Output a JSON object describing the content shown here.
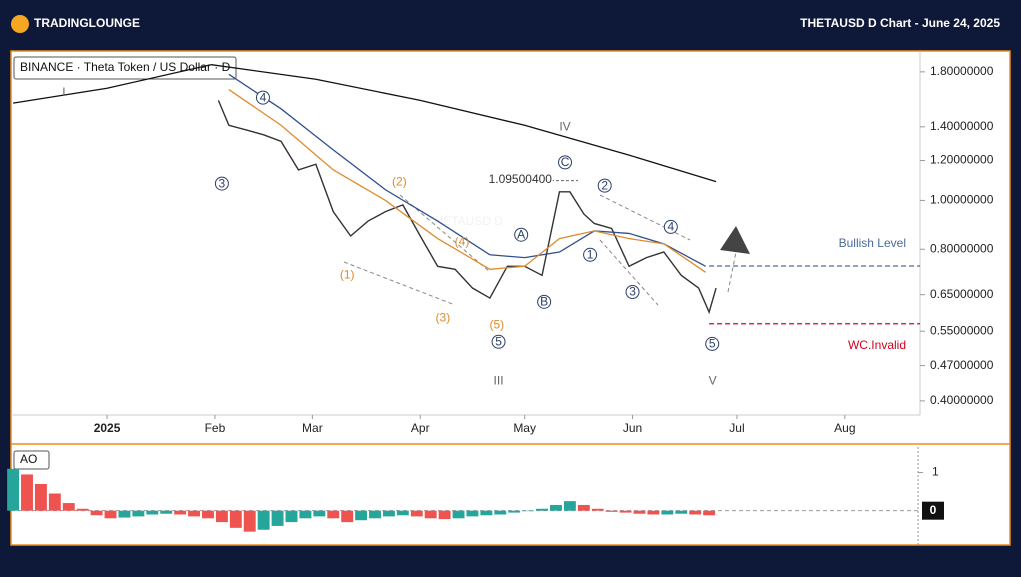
{
  "header": {
    "logo": "TradingLounge",
    "title": "THETAUSD D Chart - June 24, 2025"
  },
  "chart_data": [
    {
      "type": "line",
      "title": "BINANCE · Theta Token / US Dollar · D",
      "watermark": "THETAUSD D",
      "log_scale": true,
      "xlim": [
        -27.6,
        233.6
      ],
      "ylim": [
        0.375,
        1.98
      ],
      "xticks": [
        {
          "value": 0,
          "label": "2025"
        },
        {
          "value": 31,
          "label": "Feb"
        },
        {
          "value": 59,
          "label": "Mar"
        },
        {
          "value": 90,
          "label": "Apr"
        },
        {
          "value": 120,
          "label": "May"
        },
        {
          "value": 151,
          "label": "Jun"
        },
        {
          "value": 181,
          "label": "Jul"
        },
        {
          "value": 212,
          "label": "Aug"
        }
      ],
      "yticks": [
        {
          "value": 1.8,
          "label": "1.80000000"
        },
        {
          "value": 1.4,
          "label": "1.40000000"
        },
        {
          "value": 1.2,
          "label": "1.20000000"
        },
        {
          "value": 1.0,
          "label": "1.00000000"
        },
        {
          "value": 0.8,
          "label": "0.80000000"
        },
        {
          "value": 0.65,
          "label": "0.65000000"
        },
        {
          "value": 0.55,
          "label": "0.55000000"
        },
        {
          "value": 0.47,
          "label": "0.47000000"
        },
        {
          "value": 0.4,
          "label": "0.40000000"
        }
      ],
      "series": [
        {
          "color": "#333333",
          "x": [
            32,
            35,
            40,
            45,
            50,
            55,
            60,
            65,
            70,
            75,
            80,
            85,
            90,
            95,
            100,
            105,
            110,
            115,
            120,
            125,
            130,
            133,
            137,
            140,
            145,
            150,
            155,
            160,
            165,
            170,
            173,
            175
          ],
          "values": [
            1.58,
            1.41,
            1.38,
            1.35,
            1.31,
            1.15,
            1.18,
            0.95,
            0.85,
            0.91,
            0.95,
            0.98,
            0.85,
            0.74,
            0.73,
            0.67,
            0.64,
            0.74,
            0.74,
            0.71,
            1.04,
            1.04,
            0.94,
            0.9,
            0.88,
            0.74,
            0.77,
            0.79,
            0.71,
            0.67,
            0.6,
            0.67
          ]
        },
        {
          "color": "#111111",
          "x": [
            -27,
            0,
            30,
            60,
            90,
            120,
            150,
            175
          ],
          "values": [
            1.56,
            1.67,
            1.86,
            1.74,
            1.58,
            1.41,
            1.23,
            1.09
          ]
        },
        {
          "color": "#2f4f8f",
          "x": [
            35,
            50,
            65,
            80,
            95,
            110,
            120,
            130,
            140,
            150,
            160,
            172
          ],
          "values": [
            1.78,
            1.52,
            1.26,
            1.05,
            0.91,
            0.78,
            0.77,
            0.79,
            0.87,
            0.86,
            0.82,
            0.74
          ]
        },
        {
          "color": "#e08a2c",
          "x": [
            35,
            50,
            65,
            80,
            95,
            110,
            120,
            130,
            140,
            150,
            160,
            172
          ],
          "values": [
            1.66,
            1.41,
            1.15,
            1.0,
            0.84,
            0.73,
            0.74,
            0.84,
            0.87,
            0.84,
            0.82,
            0.72
          ]
        }
      ],
      "levels": [
        {
          "label": "Bullish Level",
          "value": 0.741,
          "start": 173,
          "color": "#4a6a9a"
        },
        {
          "label": "WC.Invalid",
          "value": 0.569,
          "start": 173,
          "color": "#d0021b"
        }
      ],
      "price_note": {
        "label": "1.09500400",
        "value": 1.095,
        "x": 129
      },
      "annotations": [
        {
          "label": "I",
          "x": -12.4,
          "y": 1.64,
          "style": "roman"
        },
        {
          "label": "4",
          "x": 44.8,
          "y": 1.6,
          "style": "circle"
        },
        {
          "label": "3",
          "x": 33,
          "y": 1.08,
          "style": "circle"
        },
        {
          "label": "(2)",
          "x": 84,
          "y": 1.09,
          "style": "orange"
        },
        {
          "label": "(1)",
          "x": 69,
          "y": 0.711,
          "style": "orange"
        },
        {
          "label": "(4)",
          "x": 102,
          "y": 0.828,
          "style": "orange"
        },
        {
          "label": "(3)",
          "x": 96.5,
          "y": 0.585,
          "style": "orange"
        },
        {
          "label": "(5)",
          "x": 112,
          "y": 0.566,
          "style": "orange"
        },
        {
          "label": "5",
          "x": 112.5,
          "y": 0.524,
          "style": "circle"
        },
        {
          "label": "III",
          "x": 112.5,
          "y": 0.438,
          "style": "roman"
        },
        {
          "label": "A",
          "x": 119,
          "y": 0.855,
          "style": "circle"
        },
        {
          "label": "B",
          "x": 125.6,
          "y": 0.629,
          "style": "circle"
        },
        {
          "label": "C",
          "x": 131.6,
          "y": 1.19,
          "style": "circle"
        },
        {
          "label": "IV",
          "x": 131.6,
          "y": 1.4,
          "style": "roman"
        },
        {
          "label": "2",
          "x": 143,
          "y": 1.07,
          "style": "circle"
        },
        {
          "label": "1",
          "x": 138.8,
          "y": 0.78,
          "style": "circle"
        },
        {
          "label": "4",
          "x": 162,
          "y": 0.886,
          "style": "circle"
        },
        {
          "label": "3",
          "x": 151,
          "y": 0.658,
          "style": "circle"
        },
        {
          "label": "5",
          "x": 173.9,
          "y": 0.519,
          "style": "circle"
        },
        {
          "label": "V",
          "x": 174,
          "y": 0.438,
          "style": "roman"
        }
      ]
    },
    {
      "type": "bar",
      "title": "AO",
      "up_color": "#26a69a",
      "down_color": "#ef5350",
      "xlim": [
        -27.6,
        233.6
      ],
      "ylim": [
        -0.9,
        1.67
      ],
      "yticks": [
        1,
        0
      ],
      "x": [
        -27,
        -23,
        -19,
        -15,
        -11,
        -7,
        -3,
        1,
        5,
        9,
        13,
        17,
        21,
        25,
        29,
        33,
        37,
        41,
        45,
        49,
        53,
        57,
        61,
        65,
        69,
        73,
        77,
        81,
        85,
        89,
        93,
        97,
        101,
        105,
        109,
        113,
        117,
        121,
        125,
        129,
        133,
        137,
        141,
        145,
        149,
        153,
        157,
        161,
        165,
        169,
        173
      ],
      "values": [
        1.1,
        0.95,
        0.7,
        0.45,
        0.2,
        0.05,
        -0.12,
        -0.2,
        -0.18,
        -0.15,
        -0.1,
        -0.08,
        -0.1,
        -0.15,
        -0.2,
        -0.3,
        -0.45,
        -0.55,
        -0.5,
        -0.4,
        -0.3,
        -0.2,
        -0.15,
        -0.2,
        -0.3,
        -0.25,
        -0.2,
        -0.15,
        -0.12,
        -0.15,
        -0.2,
        -0.22,
        -0.2,
        -0.15,
        -0.12,
        -0.1,
        -0.05,
        0.0,
        0.05,
        0.15,
        0.25,
        0.15,
        0.05,
        -0.03,
        -0.05,
        -0.08,
        -0.1,
        -0.1,
        -0.08,
        -0.1,
        -0.12
      ]
    }
  ]
}
